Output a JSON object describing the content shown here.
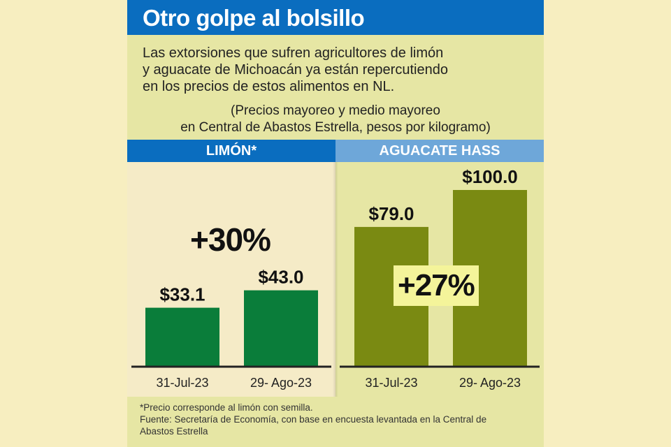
{
  "title": "Otro golpe al bolsillo",
  "intro_lines": [
    "Las extorsiones que sufren agricultores de limón",
    "y aguacate de Michoacán ya están repercutiendo",
    "en los precios de estos alimentos en NL."
  ],
  "note_lines": [
    "(Precios mayoreo y medio mayoreo",
    "en Central de Abastos Estrella, pesos por kilogramo)"
  ],
  "colors": {
    "blue_header": "#0a6dbf",
    "light_blue_header": "#6ea7d9",
    "lemon_bar": "#0a7d3a",
    "avocado_bar": "#7a8a12",
    "card_bg": "#e6e6a4",
    "page_bg": "#f7eec0"
  },
  "chart_data": [
    {
      "type": "bar",
      "title": "LIMÓN*",
      "categories": [
        "31-Jul-23",
        "29- Ago-23"
      ],
      "values": [
        33.1,
        43.0
      ],
      "labels": [
        "$33.1",
        "$43.0"
      ],
      "change": "+30%",
      "unit": "pesos por kilogramo",
      "ylim": [
        0,
        100
      ]
    },
    {
      "type": "bar",
      "title": "AGUACATE HASS",
      "categories": [
        "31-Jul-23",
        "29- Ago-23"
      ],
      "values": [
        79.0,
        100.0
      ],
      "labels": [
        "$79.0",
        "$100.0"
      ],
      "change": "+27%",
      "unit": "pesos por kilogramo",
      "ylim": [
        0,
        100
      ]
    }
  ],
  "footnote_lines": [
    "*Precio corresponde al limón con semilla.",
    "Fuente: Secretaría de Economía, con base en encuesta levantada en la Central de",
    "Abastos Estrella"
  ]
}
